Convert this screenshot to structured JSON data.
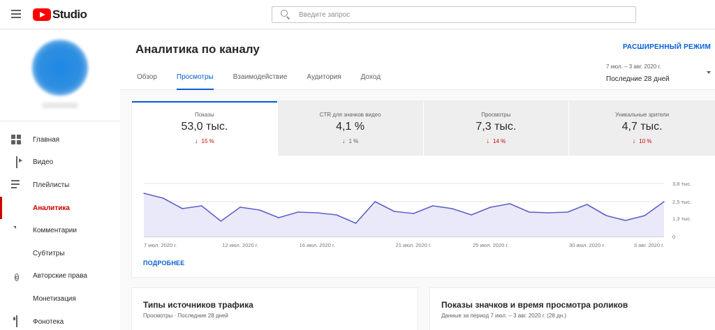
{
  "app": {
    "logo_text": "Studio"
  },
  "search": {
    "placeholder": "Введите запрос"
  },
  "sidebar": {
    "items": [
      {
        "label": "Главная",
        "icon": "dashboard-icon"
      },
      {
        "label": "Видео",
        "icon": "video-icon"
      },
      {
        "label": "Плейлисты",
        "icon": "playlist-icon"
      },
      {
        "label": "Аналитика",
        "icon": "analytics-icon",
        "active": true
      },
      {
        "label": "Комментарии",
        "icon": "comment-icon"
      },
      {
        "label": "Субтитры",
        "icon": "subtitles-icon"
      },
      {
        "label": "Авторские права",
        "icon": "copyright-icon"
      },
      {
        "label": "Монетизация",
        "icon": "monetization-icon"
      },
      {
        "label": "Фонотека",
        "icon": "audio-library-icon"
      }
    ]
  },
  "header": {
    "title": "Аналитика по каналу",
    "advanced_label": "РАСШИРЕННЫЙ РЕЖИМ",
    "tabs": [
      "Обзор",
      "Просмотры",
      "Взаимодействие",
      "Аудитория",
      "Доход"
    ],
    "active_tab": "Просмотры",
    "period_range": "7 июл. – 3 авг. 2020 г.",
    "period_label": "Последние 28 дней"
  },
  "metrics": [
    {
      "label": "Показы",
      "value": "53,0 тыс.",
      "change": "15 %",
      "direction": "down",
      "color": "#cc0000"
    },
    {
      "label": "CTR для значков видео",
      "value": "4,1 %",
      "change": "1 %",
      "direction": "down",
      "color": "#606060"
    },
    {
      "label": "Просмотры",
      "value": "7,3 тыс.",
      "change": "14 %",
      "direction": "down",
      "color": "#cc0000"
    },
    {
      "label": "Уникальные зрители",
      "value": "4,7 тыс.",
      "change": "10 %",
      "direction": "down",
      "color": "#cc0000"
    }
  ],
  "chart_data": {
    "type": "area",
    "x": [
      "7 июл. 2020 г.",
      "8",
      "9",
      "10",
      "11",
      "12 июл. 2020 г.",
      "13",
      "14",
      "15",
      "16 июл. 2020 г.",
      "17",
      "18",
      "19",
      "20",
      "21 июл. 2020 г.",
      "22",
      "23",
      "24",
      "25 июл. 2020 г.",
      "26",
      "27",
      "28",
      "29",
      "30 июл. 2020 г.",
      "31",
      "1",
      "2",
      "3 авг. 2020 г."
    ],
    "x_tick_labels": [
      "7 июл. 2020 г.",
      "12 июл. 2020 г.",
      "16 июл. 2020 г.",
      "21 июл. 2020 г.",
      "25 июл. 2020 г.",
      "30 июл. 2020 г.",
      "3 авг. 2020 г."
    ],
    "x_tick_indices": [
      0,
      5,
      9,
      14,
      18,
      23,
      27
    ],
    "y_tick_labels": [
      "0",
      "1,3 тыс.",
      "2,5 тыс.",
      "3,8 тыс."
    ],
    "y_tick_values": [
      0,
      1300,
      2500,
      3800
    ],
    "ylim": [
      0,
      3800
    ],
    "series": [
      {
        "values": [
          3100,
          2750,
          2000,
          2200,
          1100,
          2100,
          1900,
          1350,
          1750,
          1700,
          1550,
          950,
          2500,
          1800,
          1650,
          2200,
          2000,
          1550,
          2100,
          2350,
          1750,
          1700,
          1750,
          2300,
          1500,
          1150,
          1500,
          2500
        ],
        "color": "#5c60c9"
      }
    ],
    "grid": true
  },
  "more_link": "ПОДРОБНЕЕ",
  "cards": [
    {
      "title": "Типы источников трафика",
      "subtitle": "Просмотры · Последние 28 дней"
    },
    {
      "title": "Показы значков и время просмотра роликов",
      "subtitle": "Данные за период 7 июл. – 3 авг. 2020 г. (28 дн.)"
    }
  ]
}
